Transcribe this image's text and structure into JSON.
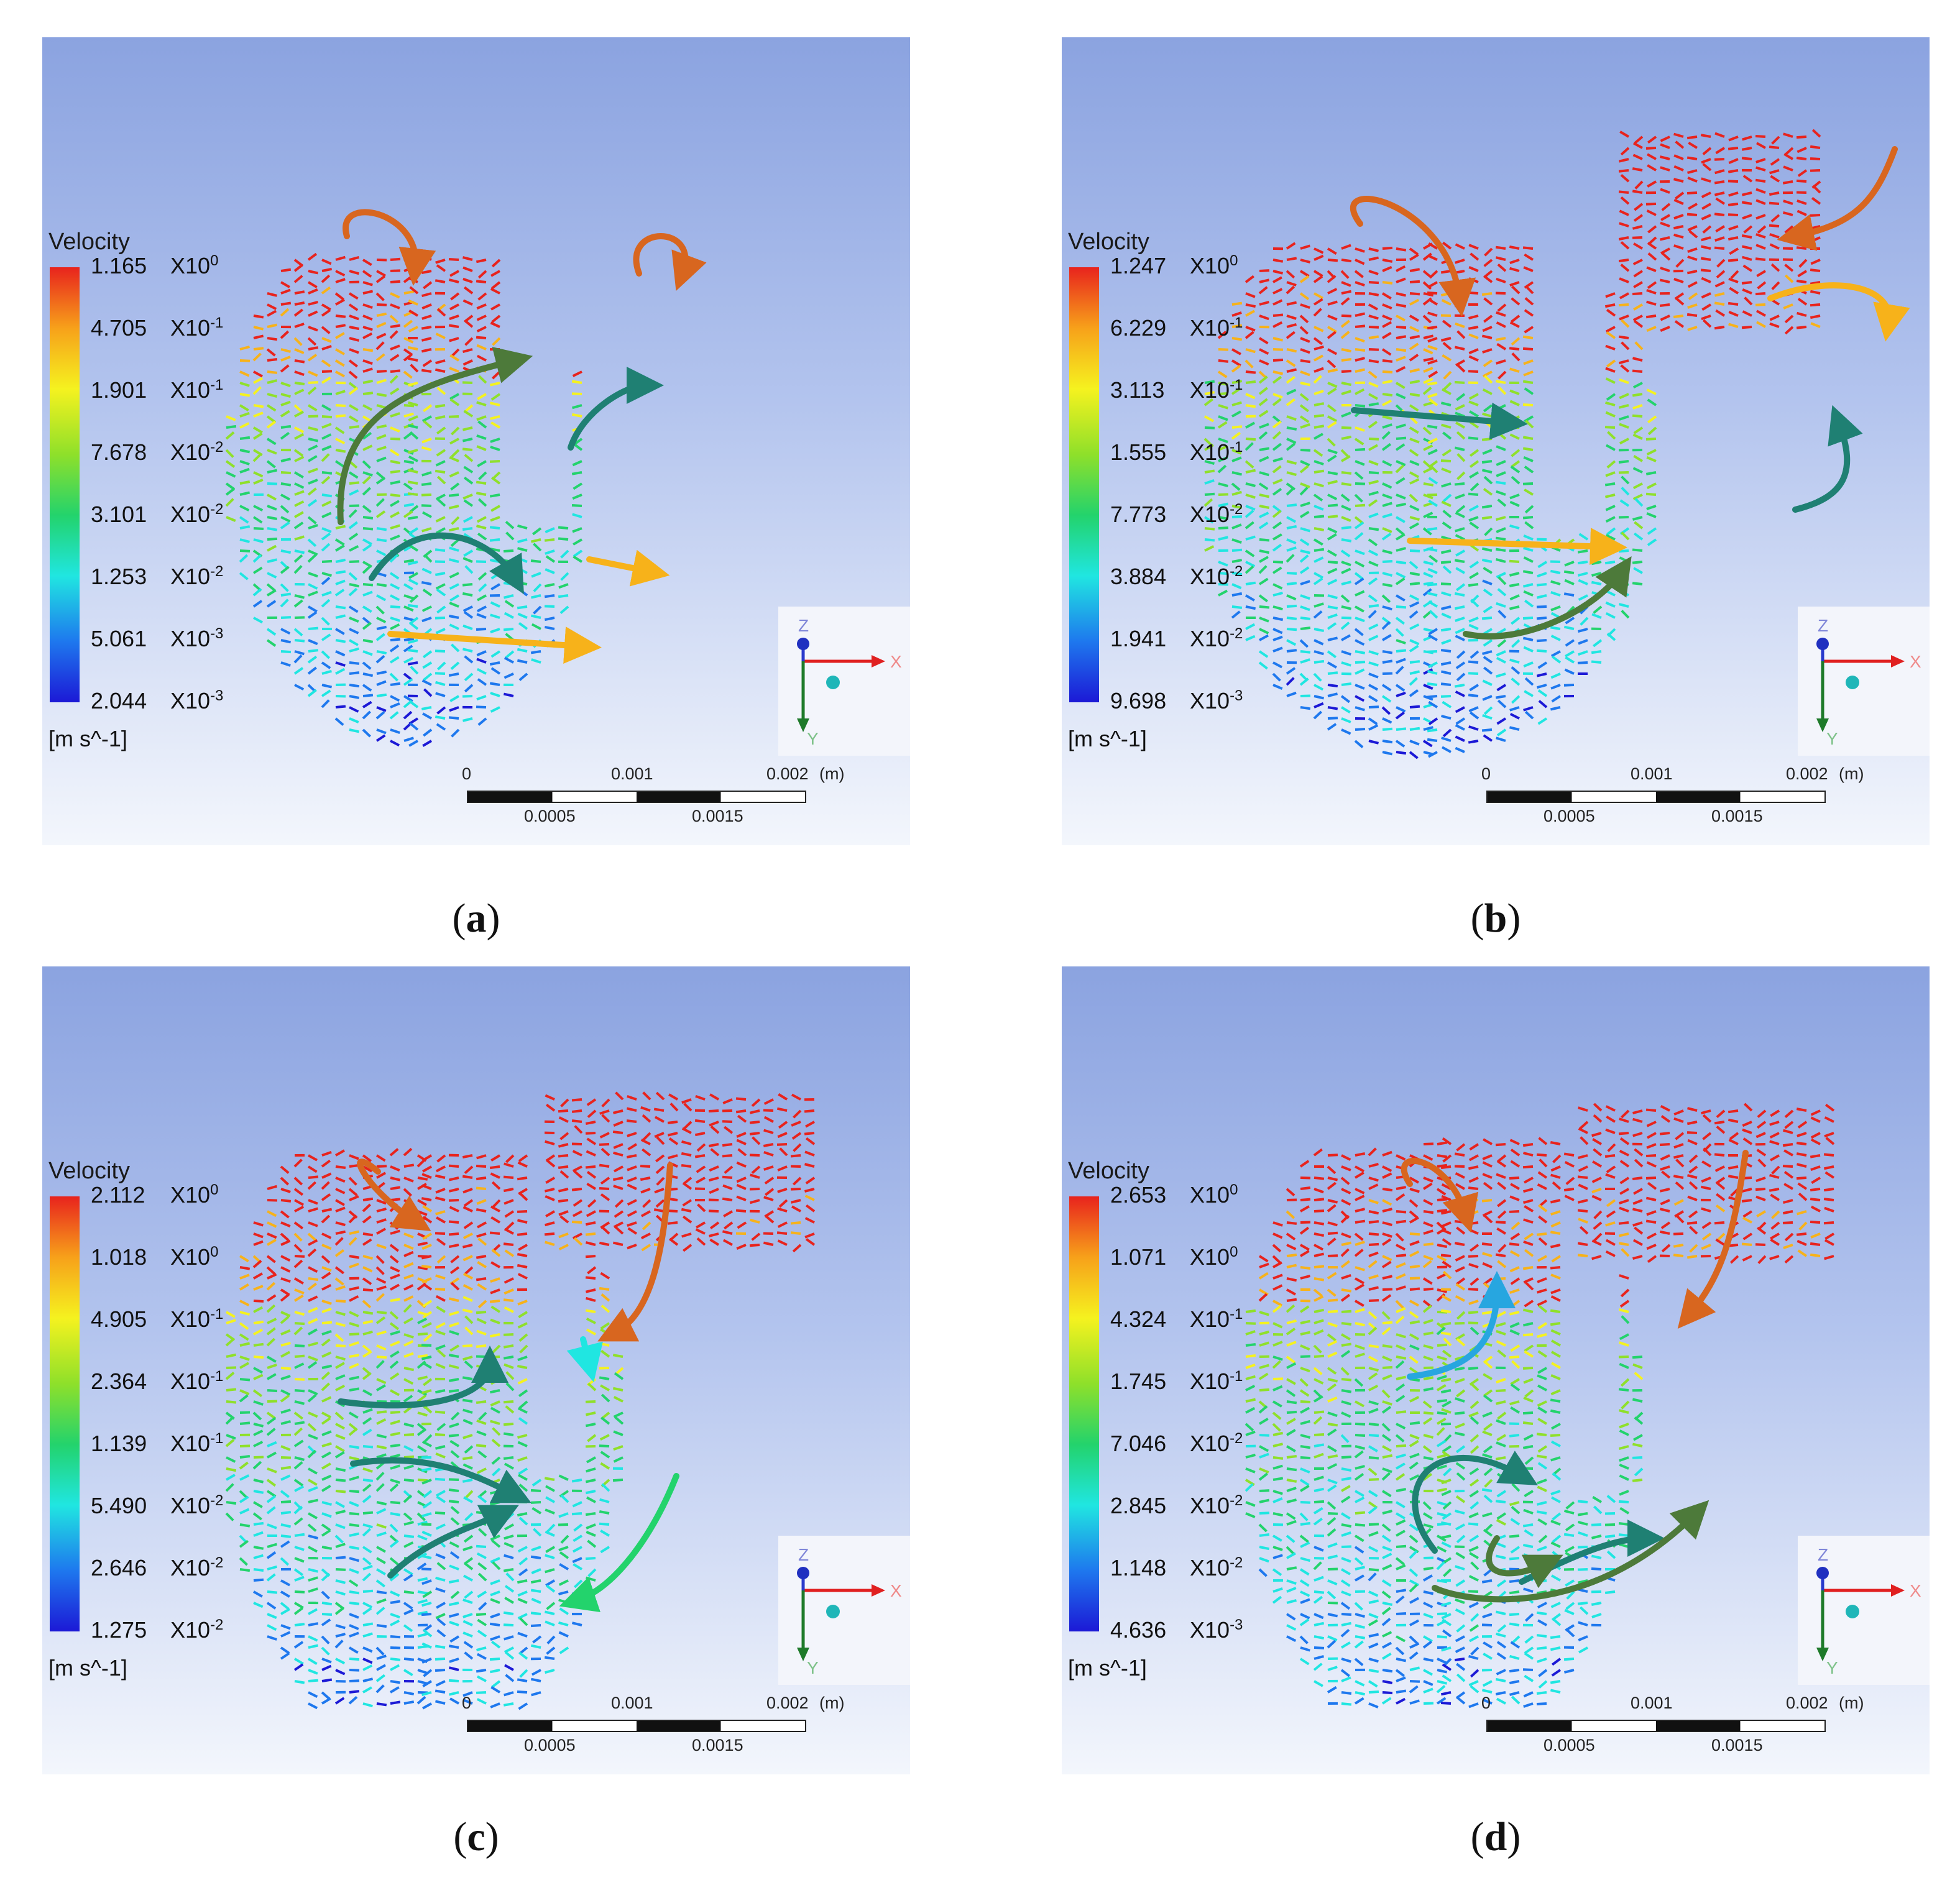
{
  "panels": [
    {
      "id": "a",
      "caption_letter": "a",
      "legend_title": "Velocity",
      "unit": "[m s^-1]",
      "ticks": [
        {
          "m": "1.165",
          "e": "0"
        },
        {
          "m": "4.705",
          "e": "-1"
        },
        {
          "m": "1.901",
          "e": "-1"
        },
        {
          "m": "7.678",
          "e": "-2"
        },
        {
          "m": "3.101",
          "e": "-2"
        },
        {
          "m": "1.253",
          "e": "-2"
        },
        {
          "m": "5.061",
          "e": "-3"
        },
        {
          "m": "2.044",
          "e": "-3"
        }
      ]
    },
    {
      "id": "b",
      "caption_letter": "b",
      "legend_title": "Velocity",
      "unit": "[m s^-1]",
      "ticks": [
        {
          "m": "1.247",
          "e": "0"
        },
        {
          "m": "6.229",
          "e": "-1"
        },
        {
          "m": "3.113",
          "e": "-1"
        },
        {
          "m": "1.555",
          "e": "-1"
        },
        {
          "m": "7.773",
          "e": "-2"
        },
        {
          "m": "3.884",
          "e": "-2"
        },
        {
          "m": "1.941",
          "e": "-2"
        },
        {
          "m": "9.698",
          "e": "-3"
        }
      ]
    },
    {
      "id": "c",
      "caption_letter": "c",
      "legend_title": "Velocity",
      "unit": "[m s^-1]",
      "ticks": [
        {
          "m": "2.112",
          "e": "0"
        },
        {
          "m": "1.018",
          "e": "0"
        },
        {
          "m": "4.905",
          "e": "-1"
        },
        {
          "m": "2.364",
          "e": "-1"
        },
        {
          "m": "1.139",
          "e": "-1"
        },
        {
          "m": "5.490",
          "e": "-2"
        },
        {
          "m": "2.646",
          "e": "-2"
        },
        {
          "m": "1.275",
          "e": "-2"
        }
      ]
    },
    {
      "id": "d",
      "caption_letter": "d",
      "legend_title": "Velocity",
      "unit": "[m s^-1]",
      "ticks": [
        {
          "m": "2.653",
          "e": "0"
        },
        {
          "m": "1.071",
          "e": "0"
        },
        {
          "m": "4.324",
          "e": "-1"
        },
        {
          "m": "1.745",
          "e": "-1"
        },
        {
          "m": "7.046",
          "e": "-2"
        },
        {
          "m": "2.845",
          "e": "-2"
        },
        {
          "m": "1.148",
          "e": "-2"
        },
        {
          "m": "4.636",
          "e": "-3"
        }
      ]
    }
  ],
  "exponent_prefix": "X10",
  "axes": {
    "x": "X",
    "y": "Y",
    "z": "Z"
  },
  "scale": {
    "top_labels": [
      "0",
      "0.001",
      "0.002"
    ],
    "unit": "(m)",
    "bottom_labels": [
      "0.0005",
      "0.0015"
    ]
  },
  "colors": {
    "red": "#e8231d",
    "orange": "#d8661f",
    "amber": "#f7b21a",
    "yellow": "#f5f21f",
    "green": "#23d36c",
    "teal": "#1f8073",
    "cyan": "#20e6e1",
    "blue": "#1c19d6",
    "dark_olive": "#4d7a3a"
  }
}
